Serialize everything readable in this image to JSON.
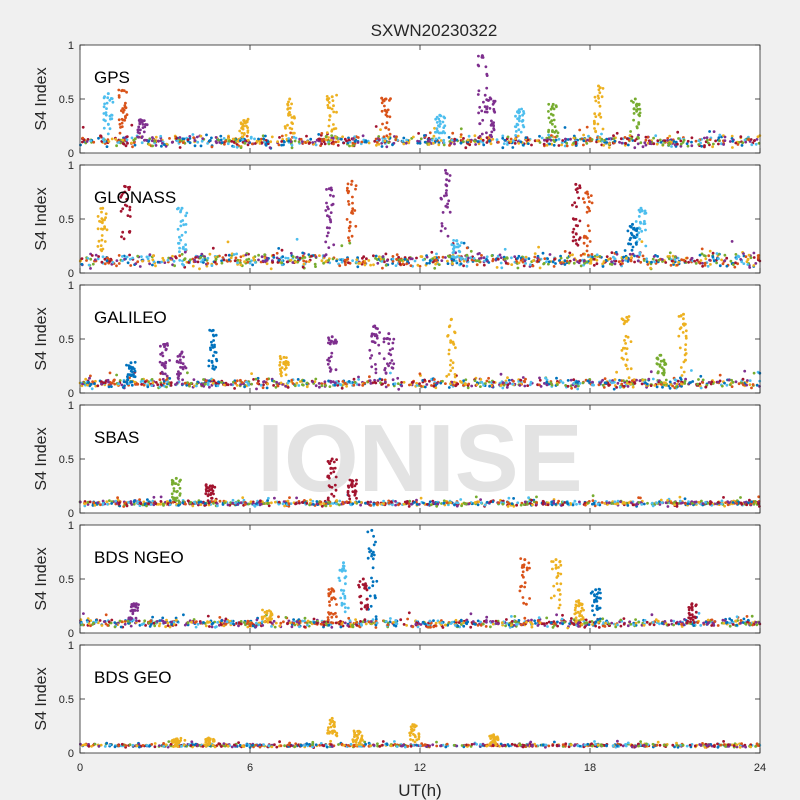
{
  "figure": {
    "title": "SXWN20230322",
    "xlabel": "UT(h)",
    "watermark": "IONISE"
  },
  "chart_data": {
    "type": "scatter",
    "xlim": [
      0,
      24
    ],
    "xticks": [
      0,
      6,
      12,
      18,
      24
    ],
    "xtick_labels": [
      "0",
      "6",
      "12",
      "18",
      "24"
    ],
    "grid": false,
    "colors": [
      "#0072BD",
      "#D95319",
      "#EDB120",
      "#7E2F8E",
      "#77AC30",
      "#4DBEEE",
      "#A2142F"
    ],
    "panels": [
      {
        "name": "GPS",
        "ylabel": "S4 Index",
        "ylim": [
          0,
          1
        ],
        "yticks": [
          0,
          0.5,
          1
        ],
        "ytick_labels": [
          "0",
          "0.5",
          "1"
        ],
        "baseline": 0.11,
        "noise": 0.05,
        "density": 1.0,
        "spikes": [
          {
            "x": 1.0,
            "peak": 0.55,
            "series": 5
          },
          {
            "x": 1.5,
            "peak": 0.58,
            "series": 1
          },
          {
            "x": 2.2,
            "peak": 0.3,
            "series": 3
          },
          {
            "x": 5.8,
            "peak": 0.3,
            "series": 2
          },
          {
            "x": 7.4,
            "peak": 0.5,
            "series": 2
          },
          {
            "x": 8.9,
            "peak": 0.52,
            "series": 2
          },
          {
            "x": 10.8,
            "peak": 0.5,
            "series": 1
          },
          {
            "x": 12.7,
            "peak": 0.35,
            "series": 5
          },
          {
            "x": 14.2,
            "peak": 0.9,
            "series": 3
          },
          {
            "x": 14.5,
            "peak": 0.5,
            "series": 3
          },
          {
            "x": 15.5,
            "peak": 0.4,
            "series": 5
          },
          {
            "x": 16.7,
            "peak": 0.45,
            "series": 4
          },
          {
            "x": 18.3,
            "peak": 0.62,
            "series": 2
          },
          {
            "x": 19.6,
            "peak": 0.5,
            "series": 4
          }
        ]
      },
      {
        "name": "GLONASS",
        "ylabel": "S4 Index",
        "ylim": [
          0,
          1
        ],
        "yticks": [
          0,
          0.5,
          1
        ],
        "ytick_labels": [
          "0",
          "0.5",
          "1"
        ],
        "baseline": 0.12,
        "noise": 0.06,
        "density": 1.0,
        "spikes": [
          {
            "x": 0.8,
            "peak": 0.6,
            "series": 2
          },
          {
            "x": 1.6,
            "peak": 0.8,
            "series": 6
          },
          {
            "x": 3.6,
            "peak": 0.6,
            "series": 5
          },
          {
            "x": 8.8,
            "peak": 0.78,
            "series": 3
          },
          {
            "x": 9.6,
            "peak": 0.85,
            "series": 1
          },
          {
            "x": 12.9,
            "peak": 0.95,
            "series": 3
          },
          {
            "x": 13.3,
            "peak": 0.3,
            "series": 5
          },
          {
            "x": 17.5,
            "peak": 0.82,
            "series": 6
          },
          {
            "x": 17.9,
            "peak": 0.75,
            "series": 1
          },
          {
            "x": 19.8,
            "peak": 0.6,
            "series": 5
          },
          {
            "x": 19.5,
            "peak": 0.45,
            "series": 0
          }
        ]
      },
      {
        "name": "GALILEO",
        "ylabel": "S4 Index",
        "ylim": [
          0,
          1
        ],
        "yticks": [
          0,
          0.5,
          1
        ],
        "ytick_labels": [
          "0",
          "0.5",
          "1"
        ],
        "baseline": 0.09,
        "noise": 0.04,
        "density": 0.9,
        "spikes": [
          {
            "x": 1.8,
            "peak": 0.28,
            "series": 0
          },
          {
            "x": 3.0,
            "peak": 0.45,
            "series": 3
          },
          {
            "x": 3.6,
            "peak": 0.38,
            "series": 3
          },
          {
            "x": 4.7,
            "peak": 0.58,
            "series": 0
          },
          {
            "x": 7.2,
            "peak": 0.33,
            "series": 2
          },
          {
            "x": 8.9,
            "peak": 0.52,
            "series": 3
          },
          {
            "x": 10.4,
            "peak": 0.62,
            "series": 3
          },
          {
            "x": 10.9,
            "peak": 0.55,
            "series": 3
          },
          {
            "x": 13.1,
            "peak": 0.68,
            "series": 2
          },
          {
            "x": 19.3,
            "peak": 0.7,
            "series": 2
          },
          {
            "x": 21.3,
            "peak": 0.73,
            "series": 2
          },
          {
            "x": 20.5,
            "peak": 0.35,
            "series": 4
          }
        ]
      },
      {
        "name": "SBAS",
        "ylabel": "S4 Index",
        "ylim": [
          0,
          1
        ],
        "yticks": [
          0,
          0.5,
          1
        ],
        "ytick_labels": [
          "0",
          "0.5",
          "1"
        ],
        "baseline": 0.09,
        "noise": 0.025,
        "density": 1.0,
        "spikes": [
          {
            "x": 3.4,
            "peak": 0.32,
            "series": 4
          },
          {
            "x": 4.6,
            "peak": 0.25,
            "series": 6
          },
          {
            "x": 8.9,
            "peak": 0.5,
            "series": 6
          },
          {
            "x": 9.6,
            "peak": 0.3,
            "series": 6
          }
        ]
      },
      {
        "name": "BDS NGEO",
        "ylabel": "S4 Index",
        "ylim": [
          0,
          1
        ],
        "yticks": [
          0,
          0.5,
          1
        ],
        "ytick_labels": [
          "0",
          "0.5",
          "1"
        ],
        "baseline": 0.09,
        "noise": 0.035,
        "density": 1.0,
        "spikes": [
          {
            "x": 1.9,
            "peak": 0.27,
            "series": 3
          },
          {
            "x": 6.6,
            "peak": 0.2,
            "series": 2
          },
          {
            "x": 8.9,
            "peak": 0.4,
            "series": 1
          },
          {
            "x": 9.3,
            "peak": 0.65,
            "series": 5
          },
          {
            "x": 10.3,
            "peak": 0.95,
            "series": 0
          },
          {
            "x": 10.0,
            "peak": 0.5,
            "series": 6
          },
          {
            "x": 15.7,
            "peak": 0.68,
            "series": 1
          },
          {
            "x": 16.8,
            "peak": 0.68,
            "series": 2
          },
          {
            "x": 17.6,
            "peak": 0.3,
            "series": 2
          },
          {
            "x": 18.2,
            "peak": 0.4,
            "series": 0
          },
          {
            "x": 21.6,
            "peak": 0.27,
            "series": 6
          }
        ]
      },
      {
        "name": "BDS GEO",
        "ylabel": "S4 Index",
        "ylim": [
          0,
          1
        ],
        "yticks": [
          0,
          0.5,
          1
        ],
        "ytick_labels": [
          "0",
          "0.5",
          "1"
        ],
        "baseline": 0.07,
        "noise": 0.015,
        "density": 0.8,
        "spikes": [
          {
            "x": 3.4,
            "peak": 0.13,
            "series": 2
          },
          {
            "x": 4.6,
            "peak": 0.13,
            "series": 2
          },
          {
            "x": 8.9,
            "peak": 0.32,
            "series": 2
          },
          {
            "x": 9.8,
            "peak": 0.2,
            "series": 2
          },
          {
            "x": 11.8,
            "peak": 0.26,
            "series": 2
          },
          {
            "x": 14.6,
            "peak": 0.16,
            "series": 2
          }
        ]
      }
    ]
  }
}
